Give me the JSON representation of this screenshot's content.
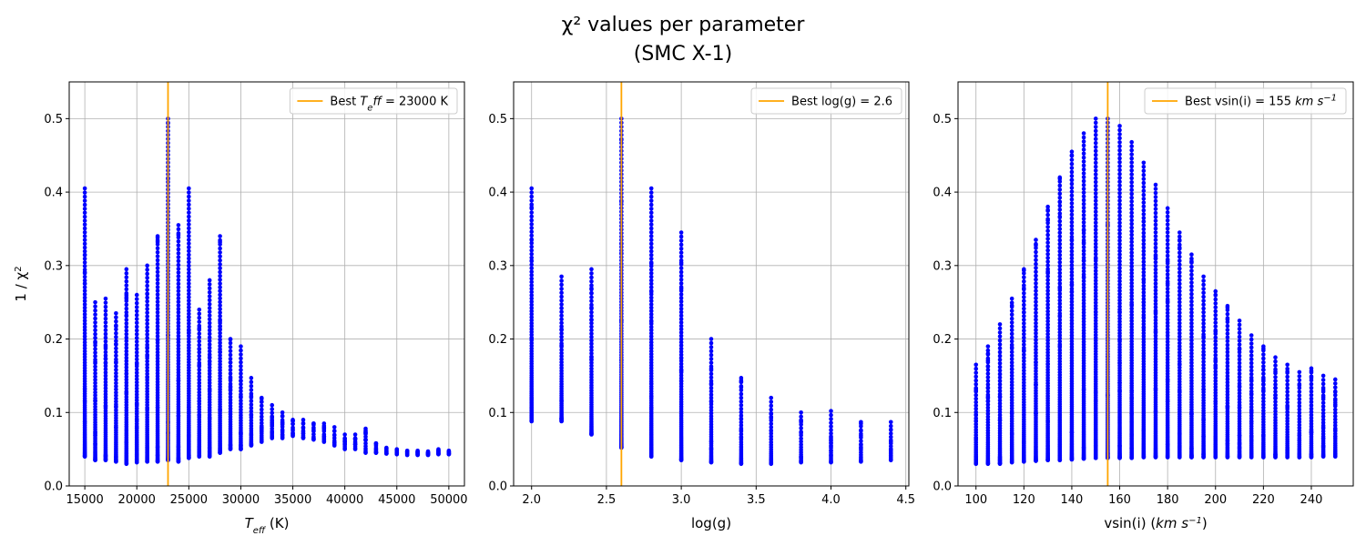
{
  "figure": {
    "title_line1": "χ² values per parameter",
    "title_line2": "(SMC X-1)",
    "colors": {
      "points": "#0000ff",
      "best_line": "#ffa500",
      "grid": "#b0b0b0"
    }
  },
  "chart_data": [
    {
      "type": "scatter",
      "xlabel": "T_eff (K)",
      "ylabel": "1 / χ²",
      "xlim": [
        13500,
        51500
      ],
      "ylim": [
        0,
        0.55
      ],
      "xticks": [
        15000,
        20000,
        25000,
        30000,
        35000,
        40000,
        45000,
        50000
      ],
      "yticks": [
        0.0,
        0.1,
        0.2,
        0.3,
        0.4,
        0.5
      ],
      "grid": true,
      "legend_position": "top-right",
      "best_line": {
        "x": 23000,
        "label": "Best T_eff = 23000 K"
      },
      "columns": [
        {
          "x": 15000,
          "ymin": 0.04,
          "ymax": 0.405
        },
        {
          "x": 16000,
          "ymin": 0.035,
          "ymax": 0.25
        },
        {
          "x": 17000,
          "ymin": 0.035,
          "ymax": 0.255
        },
        {
          "x": 18000,
          "ymin": 0.033,
          "ymax": 0.235
        },
        {
          "x": 19000,
          "ymin": 0.03,
          "ymax": 0.295
        },
        {
          "x": 20000,
          "ymin": 0.032,
          "ymax": 0.26
        },
        {
          "x": 21000,
          "ymin": 0.033,
          "ymax": 0.3
        },
        {
          "x": 22000,
          "ymin": 0.033,
          "ymax": 0.34
        },
        {
          "x": 23000,
          "ymin": 0.035,
          "ymax": 0.5
        },
        {
          "x": 24000,
          "ymin": 0.033,
          "ymax": 0.355
        },
        {
          "x": 25000,
          "ymin": 0.038,
          "ymax": 0.405
        },
        {
          "x": 26000,
          "ymin": 0.04,
          "ymax": 0.24
        },
        {
          "x": 27000,
          "ymin": 0.04,
          "ymax": 0.28
        },
        {
          "x": 28000,
          "ymin": 0.045,
          "ymax": 0.34
        },
        {
          "x": 29000,
          "ymin": 0.05,
          "ymax": 0.2
        },
        {
          "x": 30000,
          "ymin": 0.05,
          "ymax": 0.19
        },
        {
          "x": 31000,
          "ymin": 0.055,
          "ymax": 0.147
        },
        {
          "x": 32000,
          "ymin": 0.06,
          "ymax": 0.12
        },
        {
          "x": 33000,
          "ymin": 0.065,
          "ymax": 0.11
        },
        {
          "x": 34000,
          "ymin": 0.065,
          "ymax": 0.1
        },
        {
          "x": 35000,
          "ymin": 0.068,
          "ymax": 0.09
        },
        {
          "x": 36000,
          "ymin": 0.065,
          "ymax": 0.09
        },
        {
          "x": 37000,
          "ymin": 0.063,
          "ymax": 0.085
        },
        {
          "x": 38000,
          "ymin": 0.06,
          "ymax": 0.085
        },
        {
          "x": 39000,
          "ymin": 0.055,
          "ymax": 0.08
        },
        {
          "x": 40000,
          "ymin": 0.05,
          "ymax": 0.07
        },
        {
          "x": 41000,
          "ymin": 0.05,
          "ymax": 0.07
        },
        {
          "x": 42000,
          "ymin": 0.045,
          "ymax": 0.078
        },
        {
          "x": 43000,
          "ymin": 0.045,
          "ymax": 0.058
        },
        {
          "x": 44000,
          "ymin": 0.044,
          "ymax": 0.052
        },
        {
          "x": 45000,
          "ymin": 0.043,
          "ymax": 0.05
        },
        {
          "x": 46000,
          "ymin": 0.042,
          "ymax": 0.048
        },
        {
          "x": 47000,
          "ymin": 0.042,
          "ymax": 0.048
        },
        {
          "x": 48000,
          "ymin": 0.042,
          "ymax": 0.047
        },
        {
          "x": 49000,
          "ymin": 0.043,
          "ymax": 0.05
        },
        {
          "x": 50000,
          "ymin": 0.043,
          "ymax": 0.048
        }
      ]
    },
    {
      "type": "scatter",
      "xlabel": "log(g)",
      "ylabel": "",
      "xlim": [
        1.88,
        4.52
      ],
      "ylim": [
        0,
        0.55
      ],
      "xticks": [
        2.0,
        2.5,
        3.0,
        3.5,
        4.0,
        4.5
      ],
      "yticks": [
        0.0,
        0.1,
        0.2,
        0.3,
        0.4,
        0.5
      ],
      "grid": true,
      "legend_position": "top-right",
      "best_line": {
        "x": 2.6,
        "label": "Best log(g) = 2.6"
      },
      "columns": [
        {
          "x": 2.0,
          "ymin": 0.088,
          "ymax": 0.405
        },
        {
          "x": 2.2,
          "ymin": 0.088,
          "ymax": 0.285
        },
        {
          "x": 2.4,
          "ymin": 0.07,
          "ymax": 0.295
        },
        {
          "x": 2.6,
          "ymin": 0.052,
          "ymax": 0.5
        },
        {
          "x": 2.8,
          "ymin": 0.04,
          "ymax": 0.405
        },
        {
          "x": 3.0,
          "ymin": 0.035,
          "ymax": 0.345
        },
        {
          "x": 3.2,
          "ymin": 0.032,
          "ymax": 0.2
        },
        {
          "x": 3.4,
          "ymin": 0.03,
          "ymax": 0.147
        },
        {
          "x": 3.6,
          "ymin": 0.03,
          "ymax": 0.12
        },
        {
          "x": 3.8,
          "ymin": 0.032,
          "ymax": 0.1
        },
        {
          "x": 4.0,
          "ymin": 0.032,
          "ymax": 0.102
        },
        {
          "x": 4.2,
          "ymin": 0.033,
          "ymax": 0.087
        },
        {
          "x": 4.4,
          "ymin": 0.035,
          "ymax": 0.087
        }
      ]
    },
    {
      "type": "scatter",
      "xlabel": "vsin(i) (km s⁻¹)",
      "ylabel": "",
      "xlim": [
        92.5,
        257.5
      ],
      "ylim": [
        0,
        0.55
      ],
      "xticks": [
        100,
        120,
        140,
        160,
        180,
        200,
        220,
        240
      ],
      "yticks": [
        0.0,
        0.1,
        0.2,
        0.3,
        0.4,
        0.5
      ],
      "grid": true,
      "legend_position": "top-right",
      "best_line": {
        "x": 155,
        "label": "Best vsin(i) = 155 km s⁻¹"
      },
      "columns": [
        {
          "x": 100,
          "ymin": 0.03,
          "ymax": 0.165
        },
        {
          "x": 105,
          "ymin": 0.03,
          "ymax": 0.19
        },
        {
          "x": 110,
          "ymin": 0.03,
          "ymax": 0.22
        },
        {
          "x": 115,
          "ymin": 0.032,
          "ymax": 0.255
        },
        {
          "x": 120,
          "ymin": 0.033,
          "ymax": 0.295
        },
        {
          "x": 125,
          "ymin": 0.034,
          "ymax": 0.335
        },
        {
          "x": 130,
          "ymin": 0.035,
          "ymax": 0.38
        },
        {
          "x": 135,
          "ymin": 0.035,
          "ymax": 0.42
        },
        {
          "x": 140,
          "ymin": 0.036,
          "ymax": 0.455
        },
        {
          "x": 145,
          "ymin": 0.037,
          "ymax": 0.48
        },
        {
          "x": 150,
          "ymin": 0.038,
          "ymax": 0.5
        },
        {
          "x": 155,
          "ymin": 0.038,
          "ymax": 0.5
        },
        {
          "x": 160,
          "ymin": 0.038,
          "ymax": 0.49
        },
        {
          "x": 165,
          "ymin": 0.038,
          "ymax": 0.468
        },
        {
          "x": 170,
          "ymin": 0.039,
          "ymax": 0.44
        },
        {
          "x": 175,
          "ymin": 0.039,
          "ymax": 0.41
        },
        {
          "x": 180,
          "ymin": 0.039,
          "ymax": 0.378
        },
        {
          "x": 185,
          "ymin": 0.039,
          "ymax": 0.345
        },
        {
          "x": 190,
          "ymin": 0.039,
          "ymax": 0.315
        },
        {
          "x": 195,
          "ymin": 0.039,
          "ymax": 0.285
        },
        {
          "x": 200,
          "ymin": 0.039,
          "ymax": 0.265
        },
        {
          "x": 205,
          "ymin": 0.039,
          "ymax": 0.245
        },
        {
          "x": 210,
          "ymin": 0.039,
          "ymax": 0.225
        },
        {
          "x": 215,
          "ymin": 0.039,
          "ymax": 0.205
        },
        {
          "x": 220,
          "ymin": 0.039,
          "ymax": 0.19
        },
        {
          "x": 225,
          "ymin": 0.039,
          "ymax": 0.175
        },
        {
          "x": 230,
          "ymin": 0.039,
          "ymax": 0.165
        },
        {
          "x": 235,
          "ymin": 0.039,
          "ymax": 0.155
        },
        {
          "x": 240,
          "ymin": 0.039,
          "ymax": 0.16
        },
        {
          "x": 245,
          "ymin": 0.04,
          "ymax": 0.15
        },
        {
          "x": 250,
          "ymin": 0.04,
          "ymax": 0.145
        }
      ]
    }
  ]
}
